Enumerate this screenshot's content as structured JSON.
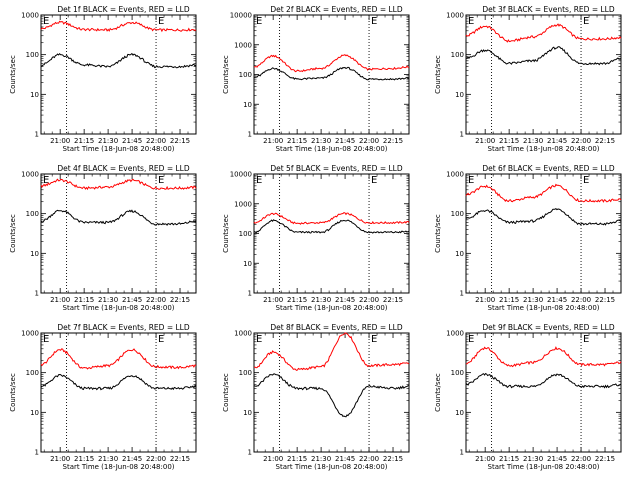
{
  "figure": {
    "xlabel": "Start Time (18-Jun-08 20:48:00)",
    "ylabel": "Counts/sec",
    "legend_text": "BLACK = Events, RED = LLD",
    "x_ticks": [
      "21:00",
      "21:15",
      "21:30",
      "21:45",
      "22:00",
      "22:15"
    ],
    "y_ticks": [
      "1",
      "10",
      "100",
      "1000"
    ],
    "marker_left": "E",
    "marker_right": "E",
    "colors": {
      "events": "#000000",
      "lld": "#ff0000",
      "axes": "#000000",
      "background": "#ffffff"
    }
  },
  "chart_data": [
    {
      "type": "line",
      "title": "Det 1f BLACK = Events, RED = LLD",
      "xlabel": "Start Time (18-Jun-08 20:48:00)",
      "ylabel": "Counts/sec",
      "ylim": [
        1,
        1000
      ],
      "yscale": "log",
      "x": [
        "20:48",
        "21:00",
        "21:15",
        "21:30",
        "21:45",
        "22:00",
        "22:15",
        "22:25"
      ],
      "series": [
        {
          "name": "LLD",
          "color": "#ff0000",
          "values": [
            450,
            650,
            430,
            420,
            640,
            420,
            420,
            430
          ]
        },
        {
          "name": "Events",
          "color": "#000000",
          "values": [
            55,
            100,
            55,
            50,
            100,
            50,
            50,
            55
          ]
        }
      ],
      "vlines": [
        "21:04",
        "22:00"
      ]
    },
    {
      "type": "line",
      "title": "Det 2f BLACK = Events, RED = LLD",
      "xlabel": "Start Time (18-Jun-08 20:48:00)",
      "ylabel": "Counts/sec",
      "ylim": [
        1,
        10000
      ],
      "yscale": "log",
      "x": [
        "20:48",
        "21:00",
        "21:15",
        "21:30",
        "21:45",
        "22:00",
        "22:15",
        "22:25"
      ],
      "series": [
        {
          "name": "LLD",
          "color": "#ff0000",
          "values": [
            180,
            420,
            130,
            160,
            440,
            150,
            160,
            180
          ]
        },
        {
          "name": "Events",
          "color": "#000000",
          "values": [
            80,
            160,
            70,
            75,
            170,
            70,
            70,
            75
          ]
        }
      ],
      "vlines": [
        "21:04",
        "22:00"
      ]
    },
    {
      "type": "line",
      "title": "Det 3f BLACK = Events, RED = LLD",
      "xlabel": "Start Time (18-Jun-08 20:48:00)",
      "ylabel": "Counts/sec",
      "ylim": [
        1,
        1000
      ],
      "yscale": "log",
      "x": [
        "20:48",
        "21:00",
        "21:15",
        "21:30",
        "21:45",
        "22:00",
        "22:15",
        "22:25"
      ],
      "series": [
        {
          "name": "LLD",
          "color": "#ff0000",
          "values": [
            300,
            520,
            220,
            280,
            560,
            250,
            250,
            270
          ]
        },
        {
          "name": "Events",
          "color": "#000000",
          "values": [
            80,
            130,
            60,
            70,
            150,
            60,
            60,
            80
          ]
        }
      ],
      "vlines": [
        "21:04",
        "22:00"
      ]
    },
    {
      "type": "line",
      "title": "Det 4f BLACK = Events, RED = LLD",
      "xlabel": "Start Time (18-Jun-08 20:48:00)",
      "ylabel": "Counts/sec",
      "ylim": [
        1,
        1000
      ],
      "yscale": "log",
      "x": [
        "20:48",
        "21:00",
        "21:15",
        "21:30",
        "21:45",
        "22:00",
        "22:15",
        "22:25"
      ],
      "series": [
        {
          "name": "LLD",
          "color": "#ff0000",
          "values": [
            500,
            700,
            440,
            470,
            690,
            440,
            440,
            460
          ]
        },
        {
          "name": "Events",
          "color": "#000000",
          "values": [
            65,
            120,
            60,
            60,
            115,
            55,
            55,
            65
          ]
        }
      ],
      "vlines": [
        "21:04",
        "22:00"
      ]
    },
    {
      "type": "line",
      "title": "Det 5f BLACK = Events, RED = LLD",
      "xlabel": "Start Time (18-Jun-08 20:48:00)",
      "ylabel": "Counts/sec",
      "ylim": [
        1,
        10000
      ],
      "yscale": "log",
      "x": [
        "20:48",
        "21:00",
        "21:15",
        "21:30",
        "21:45",
        "22:00",
        "22:15",
        "22:25"
      ],
      "series": [
        {
          "name": "LLD",
          "color": "#ff0000",
          "values": [
            230,
            460,
            220,
            230,
            470,
            230,
            230,
            240
          ]
        },
        {
          "name": "Events",
          "color": "#000000",
          "values": [
            110,
            270,
            110,
            110,
            280,
            110,
            110,
            115
          ]
        }
      ],
      "vlines": [
        "21:04",
        "22:00"
      ]
    },
    {
      "type": "line",
      "title": "Det 6f BLACK = Events, RED = LLD",
      "xlabel": "Start Time (18-Jun-08 20:48:00)",
      "ylabel": "Counts/sec",
      "ylim": [
        1,
        1000
      ],
      "yscale": "log",
      "x": [
        "20:48",
        "21:00",
        "21:15",
        "21:30",
        "21:45",
        "22:00",
        "22:15",
        "22:25"
      ],
      "series": [
        {
          "name": "LLD",
          "color": "#ff0000",
          "values": [
            300,
            490,
            210,
            260,
            510,
            210,
            210,
            230
          ]
        },
        {
          "name": "Events",
          "color": "#000000",
          "values": [
            75,
            120,
            60,
            65,
            130,
            55,
            55,
            65
          ]
        }
      ],
      "vlines": [
        "21:04",
        "22:00"
      ]
    },
    {
      "type": "line",
      "title": "Det 7f BLACK = Events, RED = LLD",
      "xlabel": "Start Time (18-Jun-08 20:48:00)",
      "ylabel": "Counts/sec",
      "ylim": [
        1,
        1000
      ],
      "yscale": "log",
      "x": [
        "20:48",
        "21:00",
        "21:15",
        "21:30",
        "21:45",
        "22:00",
        "22:15",
        "22:25"
      ],
      "series": [
        {
          "name": "LLD",
          "color": "#ff0000",
          "values": [
            160,
            380,
            130,
            150,
            380,
            140,
            135,
            150
          ]
        },
        {
          "name": "Events",
          "color": "#000000",
          "values": [
            45,
            85,
            40,
            40,
            85,
            40,
            40,
            45
          ]
        }
      ],
      "vlines": [
        "21:04",
        "22:00"
      ]
    },
    {
      "type": "line",
      "title": "Det 8f BLACK = Events, RED = LLD",
      "xlabel": "Start Time (18-Jun-08 20:48:00)",
      "ylabel": "Counts/sec",
      "ylim": [
        1,
        1000
      ],
      "yscale": "log",
      "x": [
        "20:48",
        "21:00",
        "21:15",
        "21:30",
        "21:45",
        "22:00",
        "22:15",
        "22:25"
      ],
      "series": [
        {
          "name": "LLD",
          "color": "#ff0000",
          "values": [
            130,
            330,
            120,
            140,
            1000,
            150,
            160,
            170
          ]
        },
        {
          "name": "Events",
          "color": "#000000",
          "values": [
            45,
            90,
            40,
            40,
            8,
            45,
            40,
            45
          ]
        }
      ],
      "vlines": [
        "21:04",
        "22:00"
      ]
    },
    {
      "type": "line",
      "title": "Det 9f BLACK = Events, RED = LLD",
      "xlabel": "Start Time (18-Jun-08 20:48:00)",
      "ylabel": "Counts/sec",
      "ylim": [
        1,
        1000
      ],
      "yscale": "log",
      "x": [
        "20:48",
        "21:00",
        "21:15",
        "21:30",
        "21:45",
        "22:00",
        "22:15",
        "22:25"
      ],
      "series": [
        {
          "name": "LLD",
          "color": "#ff0000",
          "values": [
            170,
            420,
            150,
            180,
            410,
            160,
            160,
            180
          ]
        },
        {
          "name": "Events",
          "color": "#000000",
          "values": [
            50,
            90,
            45,
            45,
            90,
            45,
            45,
            50
          ]
        }
      ],
      "vlines": [
        "21:04",
        "22:00"
      ]
    }
  ]
}
